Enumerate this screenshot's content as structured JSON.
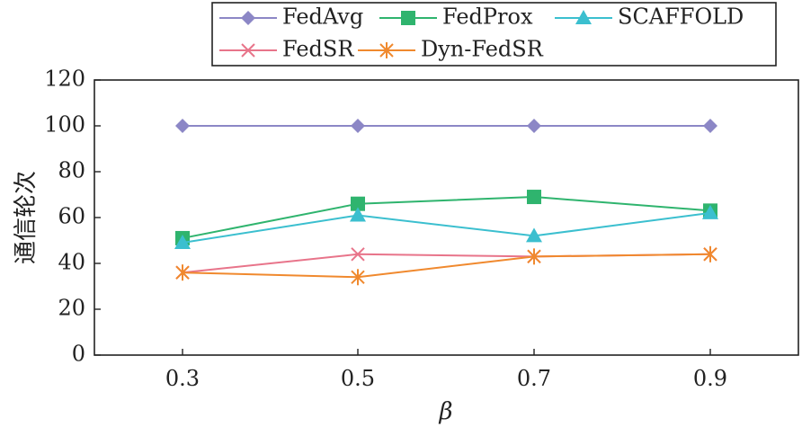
{
  "chart_data": {
    "type": "line",
    "title": "",
    "xlabel": "β",
    "ylabel": "通信轮次",
    "categories": [
      "0.3",
      "0.5",
      "0.7",
      "0.9"
    ],
    "ylim": [
      0,
      120
    ],
    "yticks": [
      "0",
      "20",
      "40",
      "60",
      "80",
      "100",
      "120"
    ],
    "grid": false,
    "legend_position": "top",
    "series": [
      {
        "name": "FedAvg",
        "values": [
          100,
          100,
          100,
          100
        ],
        "color": "#8c87c6",
        "marker": "diamond"
      },
      {
        "name": "FedProx",
        "values": [
          51,
          66,
          69,
          63
        ],
        "color": "#2fb46e",
        "marker": "square"
      },
      {
        "name": "SCAFFOLD",
        "values": [
          49,
          61,
          52,
          62
        ],
        "color": "#3bbfcf",
        "marker": "triangle"
      },
      {
        "name": "FedSR",
        "values": [
          36,
          44,
          43,
          44
        ],
        "color": "#e8748a",
        "marker": "x"
      },
      {
        "name": "Dyn-FedSR",
        "values": [
          36,
          34,
          43,
          44
        ],
        "color": "#f0892e",
        "marker": "asterisk"
      }
    ]
  }
}
